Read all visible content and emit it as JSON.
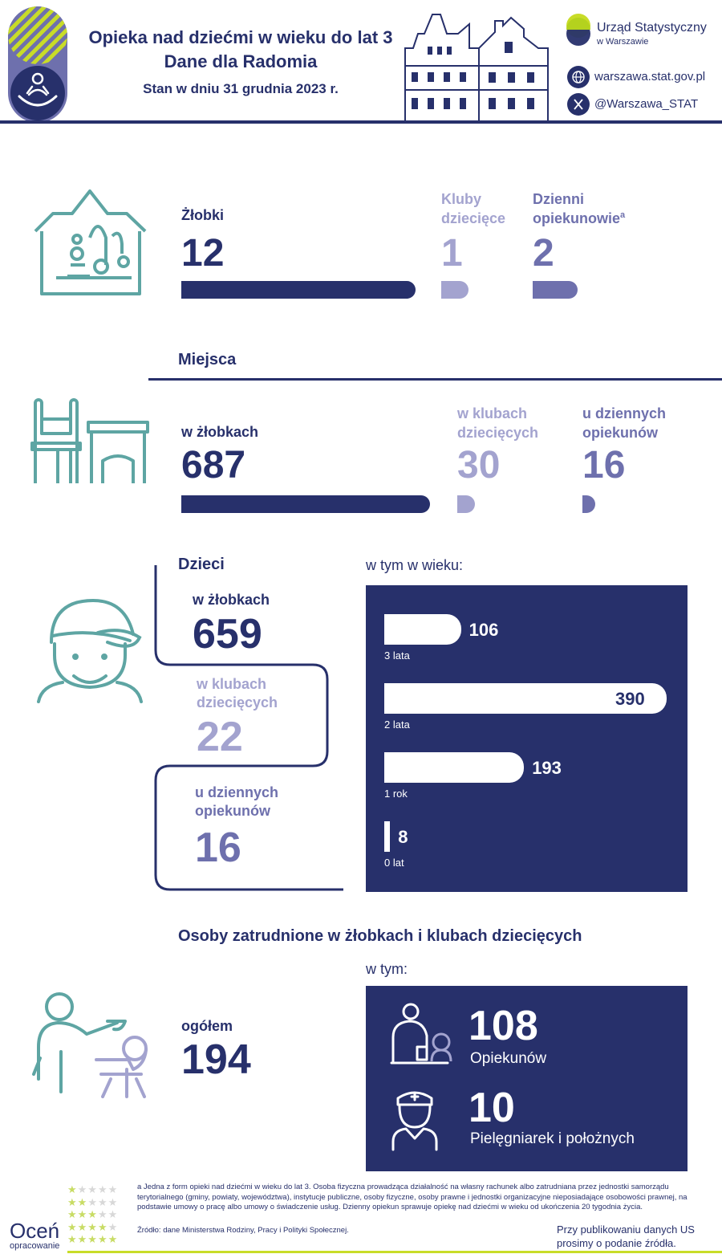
{
  "header": {
    "title_line1": "Opieka nad dziećmi w wieku do lat 3",
    "title_line2": "Dane dla Radomia",
    "subtitle": "Stan w dniu 31 grudnia 2023 r.",
    "org_name": "Urząd Statystyczny",
    "org_city": "w Warszawie",
    "website": "warszawa.stat.gov.pl",
    "twitter": "@Warszawa_STAT"
  },
  "facilities": {
    "items": [
      {
        "label_line1": "Żłobki",
        "label_line2": "",
        "value": "12",
        "value_num": 12
      },
      {
        "label_line1": "Kluby",
        "label_line2": "dziecięce",
        "value": "1",
        "value_num": 1
      },
      {
        "label_line1": "Dzienni",
        "label_line2": "opiekunowie",
        "sup": "a",
        "value": "2",
        "value_num": 2
      }
    ]
  },
  "places": {
    "heading": "Miejsca",
    "items": [
      {
        "label_line1": "w żłobkach",
        "label_line2": "",
        "value": "687",
        "value_num": 687
      },
      {
        "label_line1": "w klubach",
        "label_line2": "dziecięcych",
        "value": "30",
        "value_num": 30
      },
      {
        "label_line1": "u dziennych",
        "label_line2": "opiekunów",
        "value": "16",
        "value_num": 16
      }
    ]
  },
  "children": {
    "heading": "Dzieci",
    "items": [
      {
        "label_line1": "w żłobkach",
        "label_line2": "",
        "value": "659"
      },
      {
        "label_line1": "w klubach",
        "label_line2": "dziecięcych",
        "value": "22"
      },
      {
        "label_line1": "u dziennych",
        "label_line2": "opiekunów",
        "value": "16"
      }
    ],
    "age_heading": "w tym w wieku:"
  },
  "chart_data": {
    "type": "bar",
    "orientation": "horizontal",
    "categories": [
      "3 lata",
      "2 lata",
      "1 rok",
      "0 lat"
    ],
    "values": [
      106,
      390,
      193,
      8
    ],
    "title": "w tym w wieku:"
  },
  "staff": {
    "heading": "Osoby zatrudnione w żłobkach i klubach dziecięcych",
    "total_label": "ogółem",
    "total_value": "194",
    "sub_heading": "w tym:",
    "carers_value": "108",
    "carers_label": "Opiekunów",
    "nurses_value": "10",
    "nurses_label": "Pielęgniarek i położnych"
  },
  "footer": {
    "note": "a Jedna z form opieki nad dziećmi w wieku do lat 3. Osoba fizyczna prowadząca działalność na własny rachunek albo zatrudniana przez jednostki samorządu terytorialnego (gminy, powiaty, województwa), instytucje publiczne, osoby fizyczne, osoby prawne i jednostki organizacyjne nieposiadające osobowości prawnej, na podstawie umowy o pracę albo umowy o świadczenie usług. Dzienny opiekun sprawuje opiekę nad dziećmi w wieku od ukończenia 20 tygodnia życia.",
    "source": "Źródło: dane Ministerstwa Rodziny, Pracy i Polityki Społecznej.",
    "rate_title": "Oceń",
    "rate_sub": "opracowanie",
    "publish_line1": "Przy publikowaniu danych US",
    "publish_line2": "prosimy o podanie źródła."
  },
  "colors": {
    "navy": "#27306b",
    "lavender": "#a3a3cf",
    "mid": "#6e70ad",
    "teal": "#5ea5a3",
    "lime": "#c8dc28"
  }
}
